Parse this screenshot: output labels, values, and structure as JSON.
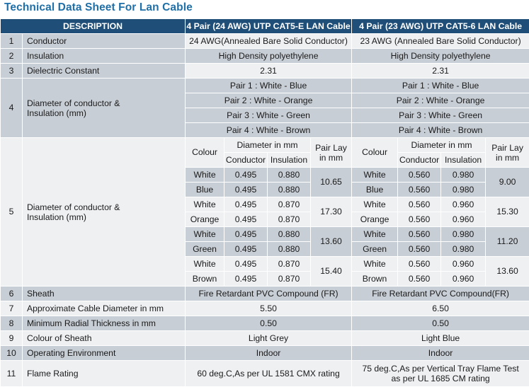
{
  "title": "Technical Data Sheet For Lan Cable",
  "headers": {
    "description": "DESCRIPTION",
    "cat5e": "4 Pair (24 AWG) UTP CAT5-E LAN Cable",
    "cat6": "4 Pair (23 AWG) UTP CAT5-6 LAN Cable"
  },
  "rows_top": [
    {
      "n": "1",
      "desc": "Conductor",
      "a": "24 AWG(Annealed Bare Solid Conductor)",
      "b": "23 AWG (Annealed Bare Solid Conductor)"
    },
    {
      "n": "2",
      "desc": "Insulation",
      "a": "High Density polyethylene",
      "b": "High Density polyethylene"
    },
    {
      "n": "3",
      "desc": "Dielectric Constant",
      "a": "2.31",
      "b": "2.31"
    }
  ],
  "row4": {
    "n": "4",
    "desc_line1": "Diameter of conductor &",
    "desc_line2": "Insulation (mm)",
    "pairs": [
      "Pair 1 : White - Blue",
      "Pair 2 : White - Orange",
      "Pair 3 : White - Green",
      "Pair 4 : White - Brown"
    ]
  },
  "row5": {
    "n": "5",
    "desc_line1": "Diameter of conductor &",
    "desc_line2": "Insulation (mm)",
    "h_colour": "Colour",
    "h_diameter": "Diameter in mm",
    "h_pairlay1": "Pair Lay",
    "h_pairlay2": "in mm",
    "h_conductor": "Conductor",
    "h_insulation": "Insulation",
    "a": {
      "rows": [
        {
          "colour": "White",
          "cond": "0.495",
          "ins": "0.880"
        },
        {
          "colour": "Blue",
          "cond": "0.495",
          "ins": "0.880"
        },
        {
          "colour": "White",
          "cond": "0.495",
          "ins": "0.870"
        },
        {
          "colour": "Orange",
          "cond": "0.495",
          "ins": "0.870"
        },
        {
          "colour": "White",
          "cond": "0.495",
          "ins": "0.880"
        },
        {
          "colour": "Green",
          "cond": "0.495",
          "ins": "0.880"
        },
        {
          "colour": "White",
          "cond": "0.495",
          "ins": "0.870"
        },
        {
          "colour": "Brown",
          "cond": "0.495",
          "ins": "0.870"
        }
      ],
      "lays": [
        "10.65",
        "17.30",
        "13.60",
        "15.40"
      ]
    },
    "b": {
      "rows": [
        {
          "colour": "White",
          "cond": "0.560",
          "ins": "0.980"
        },
        {
          "colour": "Blue",
          "cond": "0.560",
          "ins": "0.980"
        },
        {
          "colour": "White",
          "cond": "0.560",
          "ins": "0.960"
        },
        {
          "colour": "Orange",
          "cond": "0.560",
          "ins": "0.960"
        },
        {
          "colour": "White",
          "cond": "0.560",
          "ins": "0.980"
        },
        {
          "colour": "Green",
          "cond": "0.560",
          "ins": "0.980"
        },
        {
          "colour": "White",
          "cond": "0.560",
          "ins": "0.960"
        },
        {
          "colour": "Brown",
          "cond": "0.560",
          "ins": "0.960"
        }
      ],
      "lays": [
        "9.00",
        "15.30",
        "11.20",
        "13.60"
      ]
    }
  },
  "rows_bottom": [
    {
      "n": "6",
      "desc": "Sheath",
      "a": "Fire Retardant PVC Compound (FR)",
      "b": "Fire Retardant PVC Compound(FR)"
    },
    {
      "n": "7",
      "desc": "Approximate Cable Diameter in mm",
      "a": "5.50",
      "b": "6.50"
    },
    {
      "n": "8",
      "desc": "Minimum Radial Thickness in mm",
      "a": "0.50",
      "b": "0.50"
    },
    {
      "n": "9",
      "desc": "Colour of Sheath",
      "a": "Light Grey",
      "b": "Light Blue"
    },
    {
      "n": "10",
      "desc": "Operating Environment",
      "a": "Indoor",
      "b": "Indoor"
    }
  ],
  "row11": {
    "n": "11",
    "desc": "Flame Rating",
    "a": "60 deg.C,As per UL 1581 CMX rating",
    "b_line1": "75 deg.C,As per Vertical Tray Flame  Test",
    "b_line2": "as per UL 1685 CM rating"
  }
}
